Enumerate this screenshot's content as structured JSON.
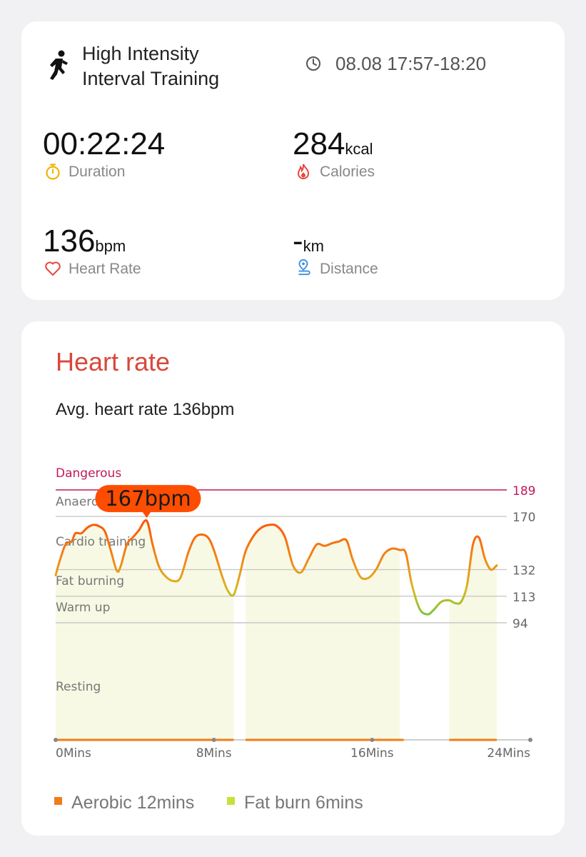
{
  "workout": {
    "title_line1": "High Intensity",
    "title_line2": "Interval Training",
    "icon": "running-person-icon",
    "time_range": "08.08 17:57-18:20"
  },
  "metrics": {
    "duration": {
      "value": "00:22:24",
      "unit": "",
      "label": "Duration",
      "icon": "stopwatch-icon",
      "color": "#f0b400"
    },
    "calories": {
      "value": "284",
      "unit": "kcal",
      "label": "Calories",
      "icon": "flame-icon",
      "color": "#e8453c"
    },
    "heart_rate": {
      "value": "136",
      "unit": "bpm",
      "label": "Heart Rate",
      "icon": "heart-icon",
      "color": "#e8453c"
    },
    "distance": {
      "value": "-",
      "unit": "km",
      "label": "Distance",
      "icon": "location-pin-icon",
      "color": "#3b8fe0"
    }
  },
  "heart_rate_section": {
    "title": "Heart rate",
    "avg_text": "Avg. heart rate 136bpm"
  },
  "chart_data": {
    "type": "line",
    "x_unit": "minutes",
    "xlim": [
      0,
      24
    ],
    "x_tick_labels": [
      "0Mins",
      "8Mins",
      "16Mins",
      "24Mins"
    ],
    "x_ticks": [
      0,
      8,
      16,
      24
    ],
    "peak_label": "167bpm",
    "peak": {
      "x": 4.6,
      "y": 167
    },
    "zones": [
      {
        "name": "Dangerous",
        "threshold": 189,
        "color": "#c2185b"
      },
      {
        "name": "Anaerobic",
        "threshold": 170,
        "color": "#c9c9c9"
      },
      {
        "name": "Cardio training",
        "threshold": 132,
        "color": "#c9c9c9"
      },
      {
        "name": "Fat burning",
        "threshold": 113,
        "color": "#c9c9c9"
      },
      {
        "name": "Warm up",
        "threshold": 94,
        "color": "#c9c9c9"
      },
      {
        "name": "Resting",
        "threshold": null,
        "color": null
      }
    ],
    "threshold_labels": [
      "189",
      "170",
      "132",
      "113",
      "94"
    ],
    "active_intervals": [
      [
        0,
        9.0
      ],
      [
        9.6,
        17.6
      ],
      [
        19.9,
        22.3
      ]
    ],
    "series": [
      {
        "values_x": [
          0,
          0.2,
          0.5,
          0.8,
          1.0,
          1.3,
          1.6,
          1.9,
          2.2,
          2.5,
          2.8,
          3.1,
          3.3,
          3.6,
          3.9,
          4.2,
          4.6,
          4.9,
          5.2,
          5.5,
          5.9,
          6.3,
          6.7,
          7.0,
          7.3,
          7.7,
          8.0,
          8.4,
          8.7,
          9.0,
          9.3,
          9.6,
          10.0,
          10.4,
          10.8,
          11.2,
          11.6,
          12.0,
          12.4,
          12.8,
          13.2,
          13.6,
          14.0,
          14.3,
          14.7,
          15.0,
          15.4,
          15.8,
          16.2,
          16.6,
          17.0,
          17.4,
          17.7,
          18.0,
          18.4,
          18.8,
          19.1,
          19.5,
          19.9,
          20.2,
          20.5,
          20.8,
          21.1,
          21.4,
          21.7,
          22.0,
          22.3
        ],
        "values_y": [
          128,
          138,
          150,
          152,
          158,
          158,
          162,
          164,
          163,
          159,
          145,
          131,
          135,
          150,
          155,
          160,
          167,
          150,
          135,
          128,
          124,
          126,
          144,
          154,
          157,
          155,
          146,
          128,
          117,
          114,
          128,
          145,
          156,
          162,
          164,
          163,
          155,
          135,
          130,
          140,
          150,
          149,
          151,
          152,
          153,
          140,
          127,
          126,
          132,
          143,
          147,
          146,
          144,
          122,
          104,
          100,
          103,
          109,
          110,
          108,
          109,
          121,
          150,
          155,
          140,
          132,
          135
        ]
      }
    ],
    "legend": [
      {
        "label": "Aerobic 12mins",
        "color": "#f07d1a"
      },
      {
        "label": "Fat burn 6mins",
        "color": "#c9e03a"
      }
    ]
  }
}
